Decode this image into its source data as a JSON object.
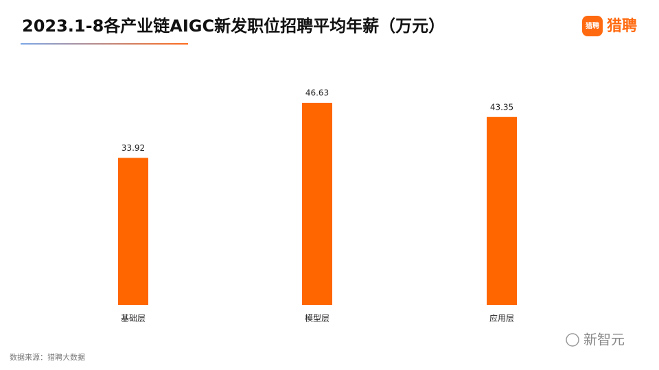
{
  "chart_data": {
    "type": "bar",
    "title": "2023.1-8各产业链AIGC新发职位招聘平均年薪（万元）",
    "categories": [
      "基础层",
      "模型层",
      "应用层"
    ],
    "values": [
      33.92,
      46.63,
      43.35
    ],
    "color": "#ff6600"
  },
  "logo": "猎聘",
  "source": "数据来源：猎聘大数据",
  "watermark": "新智元"
}
